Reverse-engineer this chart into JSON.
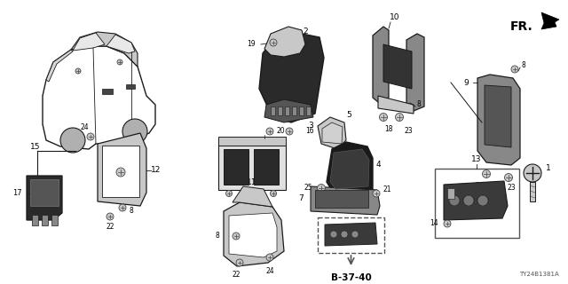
{
  "bg_color": "#ffffff",
  "diagram_code": "TY24B1381A",
  "fr_label": "FR.",
  "b3740_label": "B-37-40",
  "line_color": "#1a1a1a",
  "gray_light": "#c8c8c8",
  "gray_mid": "#888888",
  "gray_dark": "#444444",
  "fig_w": 6.4,
  "fig_h": 3.2,
  "dpi": 100
}
